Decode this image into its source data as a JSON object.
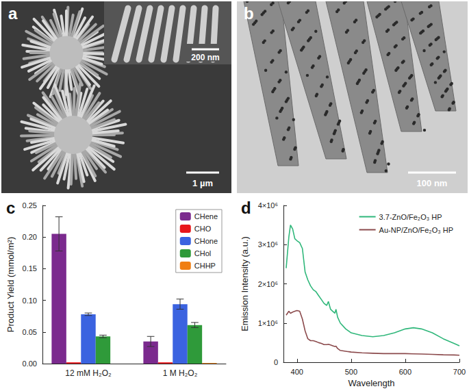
{
  "images": [
    {
      "annotations": [
        "a",
        "200 nm",
        "1 µm"
      ]
    },
    {
      "annotations": [
        "b",
        "100 nm"
      ]
    }
  ],
  "chart_data": [
    {
      "type": "bar",
      "annotations": [
        "c"
      ],
      "y_label": "Product Yield (mmol/m²)",
      "categories": [
        "12 mM H₂O₂",
        "1 M H₂O₂"
      ],
      "series": [
        {
          "name": "CHene",
          "color": "#7b2a8e",
          "values": [
            0.205,
            0.035
          ],
          "errors": [
            0.027,
            0.008
          ]
        },
        {
          "name": "CHO",
          "color": "#e8161b",
          "values": [
            0.002,
            0.002
          ],
          "errors": [
            0,
            0
          ]
        },
        {
          "name": "CHone",
          "color": "#3b63e0",
          "values": [
            0.078,
            0.094
          ],
          "errors": [
            0.002,
            0.008
          ]
        },
        {
          "name": "CHol",
          "color": "#2f9a3a",
          "values": [
            0.043,
            0.061
          ],
          "errors": [
            0.002,
            0.004
          ]
        },
        {
          "name": "CHHP",
          "color": "#f07e12",
          "values": [
            0,
            0.001
          ],
          "errors": [
            0,
            0
          ]
        }
      ],
      "ylim": [
        0,
        0.25
      ],
      "yticks": [
        {
          "value": 0,
          "label": "0.00"
        },
        0.05,
        {
          "value": 0.1,
          "label": "0.10"
        },
        0.15,
        {
          "value": 0.2,
          "label": "0.20"
        },
        0.25
      ],
      "legend": "upper right",
      "grid": false
    },
    {
      "type": "line",
      "annotations": [
        "d"
      ],
      "x_label": "Wavelength",
      "y_label": "Emission Intensity (a.u.)",
      "x": [
        380,
        385,
        388,
        392,
        396,
        400,
        405,
        410,
        415,
        420,
        425,
        430,
        435,
        440,
        445,
        450,
        455,
        458,
        462,
        466,
        470,
        472,
        475,
        480,
        490,
        500,
        520,
        540,
        560,
        580,
        600,
        615,
        630,
        650,
        670,
        690,
        700
      ],
      "series": [
        {
          "name": "3.7-ZnO/Fe₂O₃ HP",
          "color": "#2fb77a",
          "values": [
            2400000,
            3200000,
            3500000,
            3400000,
            3150000,
            3100000,
            3050000,
            2900000,
            2300000,
            2100000,
            1950000,
            1850000,
            1800000,
            1700000,
            1600000,
            1500000,
            1450000,
            1550000,
            1350000,
            1300000,
            1250000,
            1350000,
            1150000,
            1000000,
            850000,
            750000,
            680000,
            650000,
            680000,
            750000,
            850000,
            880000,
            850000,
            750000,
            600000,
            480000,
            420000
          ]
        },
        {
          "name": "Au-NP/ZnO/Fe₂O₃ HP",
          "color": "#8b4a4c",
          "values": [
            1200000,
            1300000,
            1250000,
            1280000,
            1300000,
            1320000,
            1300000,
            1100000,
            800000,
            600000,
            550000,
            550000,
            530000,
            500000,
            480000,
            450000,
            450000,
            460000,
            440000,
            420000,
            400000,
            410000,
            350000,
            300000,
            280000,
            260000,
            240000,
            230000,
            220000,
            220000,
            220000,
            215000,
            210000,
            200000,
            190000,
            185000,
            180000
          ]
        }
      ],
      "xlim": [
        375,
        700
      ],
      "xticks": [
        400,
        500,
        600,
        700
      ],
      "ylim": [
        0,
        4000000
      ],
      "yticks": [
        0,
        {
          "value": 1000000,
          "label": "1×10⁶"
        },
        {
          "value": 2000000,
          "label": "2×10⁶"
        },
        {
          "value": 3000000,
          "label": "3×10⁶"
        },
        {
          "value": 4000000,
          "label": "4×10⁶"
        }
      ],
      "legend": "upper right",
      "grid": false
    }
  ]
}
